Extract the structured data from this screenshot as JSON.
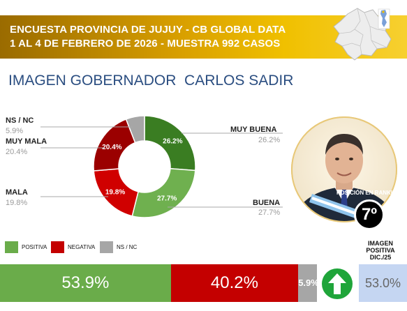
{
  "header": {
    "line1": "ENCUESTA PROVINCIA DE JUJUY - CB GLOBAL DATA",
    "line2": "1 AL 4 DE FEBRERO DE 2026 - MUESTRA 992 CASOS"
  },
  "subtitle": "IMAGEN GOBERNADOR  CARLOS SADIR",
  "colors": {
    "banner": "#d9a000",
    "muy_buena": "#3a7d22",
    "buena": "#6fb04f",
    "mala": "#d00000",
    "muy_mala": "#9b0000",
    "nsnc": "#a6a6a6",
    "positiva": "#6aac4a",
    "negativa": "#c40000",
    "previous": "#c5d6f2",
    "arrow": "#1fa53a"
  },
  "chart_data": [
    {
      "type": "pie",
      "donut": true,
      "categories": [
        "MUY BUENA",
        "BUENA",
        "MALA",
        "MUY MALA",
        "NS / NC"
      ],
      "values": [
        26.2,
        27.7,
        19.8,
        20.4,
        5.9
      ],
      "labels": [
        "26.2%",
        "27.7%",
        "19.8%",
        "20.4%",
        "5.9%"
      ]
    },
    {
      "type": "bar",
      "stacked": true,
      "orientation": "horizontal",
      "categories": [
        "POSITIVA",
        "NEGATIVA",
        "NS / NC"
      ],
      "values": [
        53.9,
        40.2,
        5.9
      ],
      "labels": [
        "53.9%",
        "40.2%",
        "5.9%"
      ]
    }
  ],
  "outer_labels": {
    "muy_buena": {
      "name": "MUY BUENA",
      "pct": "26.2%"
    },
    "buena": {
      "name": "BUENA",
      "pct": "27.7%"
    },
    "mala": {
      "name": "MALA",
      "pct": "19.8%"
    },
    "muy_mala": {
      "name": "MUY MALA",
      "pct": "20.4%"
    },
    "nsnc": {
      "name": "NS / NC",
      "pct": "5.9%"
    }
  },
  "legend": {
    "positiva": "POSITIVA",
    "negativa": "NEGATIVA",
    "nsnc": "NS / NC"
  },
  "ranking": {
    "label": "POSICIÓN EN RANKING",
    "value": "7º"
  },
  "previous": {
    "header": "IMAGEN POSITIVA DIC./25",
    "value": "53.0%",
    "trend": "up-arrow-icon"
  }
}
